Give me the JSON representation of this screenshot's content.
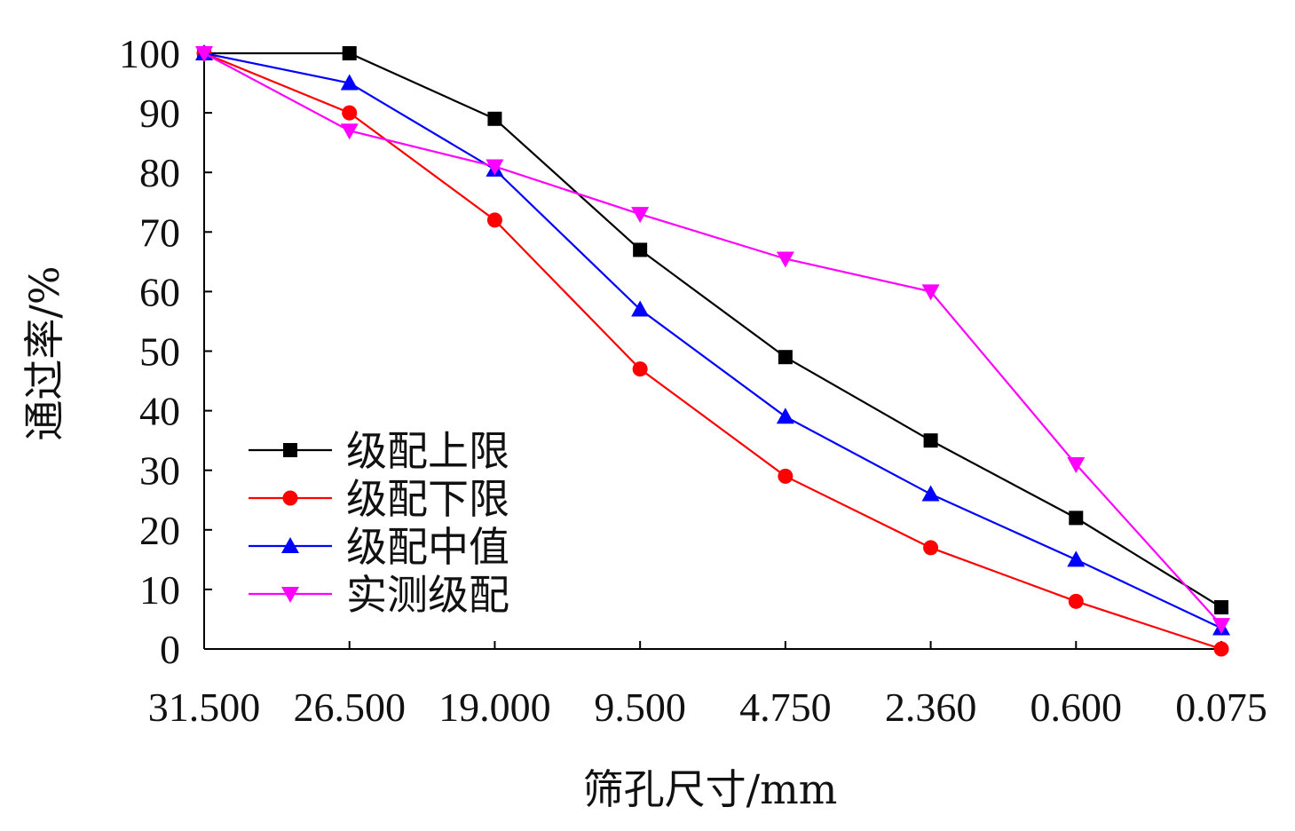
{
  "chart_data": {
    "type": "line",
    "xlabel": "筛孔尺寸/mm",
    "ylabel": "通过率/%",
    "categories": [
      "31.500",
      "26.500",
      "19.000",
      "9.500",
      "4.750",
      "2.360",
      "0.600",
      "0.075"
    ],
    "yticks": [
      "0",
      "10",
      "20",
      "30",
      "40",
      "50",
      "60",
      "70",
      "80",
      "90",
      "100"
    ],
    "ylim": [
      0,
      100
    ],
    "grid": false,
    "legend_position": "bottom-left",
    "series": [
      {
        "name": "级配上限",
        "color": "#000000",
        "marker": "square",
        "values": [
          100,
          100,
          89,
          67,
          49,
          35,
          22,
          7
        ]
      },
      {
        "name": "级配下限",
        "color": "#ff0000",
        "marker": "circle",
        "values": [
          100,
          90,
          72,
          47,
          29,
          17,
          8,
          0
        ]
      },
      {
        "name": "级配中值",
        "color": "#0000ff",
        "marker": "triangle-up",
        "values": [
          100,
          95,
          80.5,
          57,
          39,
          26,
          15,
          3.5
        ]
      },
      {
        "name": "实测级配",
        "color": "#ff00ff",
        "marker": "triangle-down",
        "values": [
          100,
          87,
          81,
          73,
          65.5,
          60,
          31,
          4
        ]
      }
    ]
  }
}
